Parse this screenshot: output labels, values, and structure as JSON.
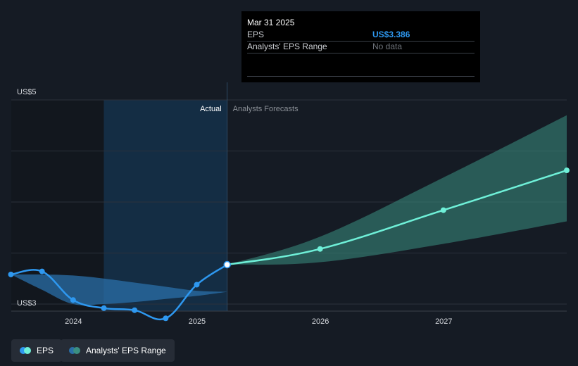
{
  "tooltip": {
    "date": "Mar 31 2025",
    "rows": [
      {
        "label": "EPS",
        "value": "US$3.386"
      },
      {
        "label": "Analysts' EPS Range",
        "value": "No data"
      }
    ]
  },
  "legend": [
    {
      "label": "EPS",
      "colors": [
        "#2e98f0",
        "#6ff0d8"
      ]
    },
    {
      "label": "Analysts' EPS Range",
      "colors": [
        "#2a6fa8",
        "#3b8f82"
      ]
    }
  ],
  "colors": {
    "background": "#151b24",
    "eps_actual": "#2e98f0",
    "eps_forecast": "#6ff0d8",
    "range_actual": "#2a6fa8",
    "range_forecast": "#3b8f82",
    "highlight": "#14304a"
  },
  "chart_data": {
    "type": "line",
    "ylim": [
      3,
      5
    ],
    "y_tick_labels": [
      {
        "value": 5,
        "label": "US$5"
      },
      {
        "value": 3,
        "label": "US$3"
      }
    ],
    "x_ticks": [
      "2024",
      "2025",
      "2026",
      "2027"
    ],
    "xlim": [
      "2023-07-01",
      "2027-12-31"
    ],
    "divider_date": "2025-03-31",
    "highlight_start": "2024-03-31",
    "section_labels": {
      "actual": "Actual",
      "forecast": "Analysts Forecasts"
    },
    "series": [
      {
        "name": "EPS",
        "segment": "actual",
        "x": [
          "2023-06-30",
          "2023-09-30",
          "2023-12-31",
          "2024-03-31",
          "2024-06-30",
          "2024-09-30",
          "2024-12-31",
          "2025-03-31"
        ],
        "y": [
          3.29,
          3.32,
          3.04,
          2.96,
          2.94,
          2.86,
          3.19,
          3.386
        ]
      },
      {
        "name": "EPS",
        "segment": "forecast",
        "x": [
          "2025-03-31",
          "2025-12-31",
          "2026-12-31",
          "2027-12-31"
        ],
        "y": [
          3.386,
          3.54,
          3.92,
          4.31
        ]
      }
    ],
    "ranges": [
      {
        "name": "Analysts' EPS Range",
        "segment": "actual",
        "x": [
          "2023-06-30",
          "2023-09-30",
          "2023-12-31",
          "2024-03-31",
          "2024-06-30",
          "2024-09-30",
          "2024-12-31",
          "2025-03-31"
        ],
        "low": [
          3.29,
          3.14,
          3.0,
          3.0,
          3.02,
          3.05,
          3.08,
          3.12
        ],
        "high": [
          3.29,
          3.29,
          3.28,
          3.25,
          3.21,
          3.17,
          3.13,
          3.12
        ]
      },
      {
        "name": "Analysts' EPS Range",
        "segment": "forecast",
        "x": [
          "2025-03-31",
          "2025-12-31",
          "2026-12-31",
          "2027-12-31"
        ],
        "low": [
          3.386,
          3.41,
          3.59,
          3.81
        ],
        "high": [
          3.386,
          3.66,
          4.24,
          4.85
        ]
      }
    ]
  }
}
